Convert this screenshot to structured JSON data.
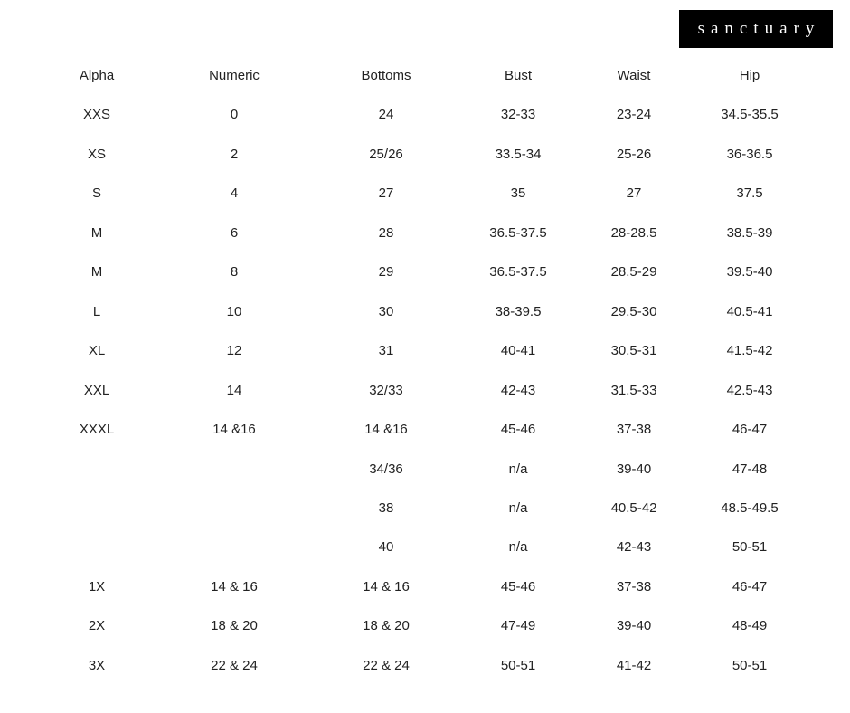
{
  "logo": "sanctuary",
  "table": {
    "columns": [
      "Alpha",
      "Numeric",
      "Bottoms",
      "Bust",
      "Waist",
      "Hip"
    ],
    "rows": [
      [
        "XXS",
        "0",
        "24",
        "32-33",
        "23-24",
        "34.5-35.5"
      ],
      [
        "XS",
        "2",
        "25/26",
        "33.5-34",
        "25-26",
        "36-36.5"
      ],
      [
        "S",
        "4",
        "27",
        "35",
        "27",
        "37.5"
      ],
      [
        "M",
        "6",
        "28",
        "36.5-37.5",
        "28-28.5",
        "38.5-39"
      ],
      [
        "M",
        "8",
        "29",
        "36.5-37.5",
        "28.5-29",
        "39.5-40"
      ],
      [
        "L",
        "10",
        "30",
        "38-39.5",
        "29.5-30",
        "40.5-41"
      ],
      [
        "XL",
        "12",
        "31",
        "40-41",
        "30.5-31",
        "41.5-42"
      ],
      [
        "XXL",
        "14",
        "32/33",
        "42-43",
        "31.5-33",
        "42.5-43"
      ],
      [
        "XXXL",
        "14 &16",
        "14 &16",
        "45-46",
        "37-38",
        "46-47"
      ],
      [
        null,
        null,
        "34/36",
        "n/a",
        "39-40",
        "47-48"
      ],
      [
        null,
        null,
        "38",
        "n/a",
        "40.5-42",
        "48.5-49.5"
      ],
      [
        null,
        null,
        "40",
        "n/a",
        "42-43",
        "50-51"
      ],
      [
        "1X",
        "14 & 16",
        "14 & 16",
        "45-46",
        "37-38",
        "46-47"
      ],
      [
        "2X",
        "18 & 20",
        "18 & 20",
        "47-49",
        "39-40",
        "48-49"
      ],
      [
        "3X",
        "22 & 24",
        "22 & 24",
        "50-51",
        "41-42",
        "50-51"
      ]
    ]
  }
}
